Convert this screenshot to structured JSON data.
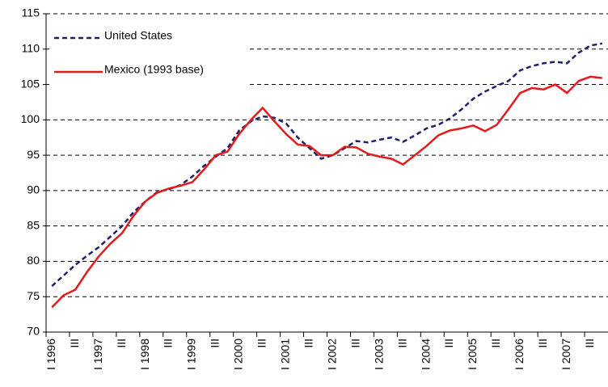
{
  "chart_data": {
    "type": "line",
    "categories": [
      "I 1996",
      null,
      "III",
      null,
      "I 1997",
      null,
      "III",
      null,
      "I 1998",
      null,
      "III",
      null,
      "I 1999",
      null,
      "III",
      null,
      "I 2000",
      null,
      "III",
      null,
      "I 2001",
      null,
      "III",
      null,
      "I 2002",
      null,
      "III",
      null,
      "I 2003",
      null,
      "III",
      null,
      "I 2004",
      null,
      "III",
      null,
      "I 2005",
      null,
      "III",
      null,
      "I 2006",
      null,
      "III",
      null,
      "I 2007",
      null,
      "III",
      null
    ],
    "series": [
      {
        "name": "United States",
        "color": "#1f1f6e",
        "dash": true,
        "values": [
          76.5,
          78,
          79.5,
          80.8,
          82,
          83.5,
          85,
          87,
          88.5,
          89.8,
          90.2,
          90.8,
          92,
          93.5,
          94.8,
          96,
          98.5,
          99.8,
          100.5,
          100.3,
          99.5,
          97.5,
          96,
          94.5,
          95,
          96,
          97,
          96.8,
          97.2,
          97.5,
          96.9,
          97.8,
          98.8,
          99.3,
          100.2,
          101.5,
          103,
          104,
          104.8,
          105.5,
          107,
          107.6,
          108,
          108.2,
          108,
          109.5,
          110.5,
          110.8
        ]
      },
      {
        "name": "Mexico (1993 base)",
        "color": "#e31a1c",
        "dash": false,
        "values": [
          73.5,
          75.2,
          76,
          78.5,
          80.7,
          82.5,
          84,
          86.5,
          88.5,
          89.7,
          90.3,
          90.7,
          91.2,
          93,
          95,
          95.5,
          98,
          100,
          101.7,
          99.8,
          98,
          96.5,
          96.3,
          95,
          95,
          96.2,
          96.1,
          95.2,
          94.8,
          94.5,
          93.7,
          95,
          96.3,
          97.8,
          98.5,
          98.8,
          99.2,
          98.4,
          99.3,
          101.5,
          103.8,
          104.5,
          104.3,
          105,
          103.8,
          105.5,
          106.1,
          105.9
        ]
      }
    ],
    "ylim": [
      70,
      115
    ],
    "yticks": [
      70,
      75,
      80,
      85,
      90,
      95,
      100,
      105,
      110,
      115
    ],
    "grid": true,
    "legend": "upper left"
  }
}
